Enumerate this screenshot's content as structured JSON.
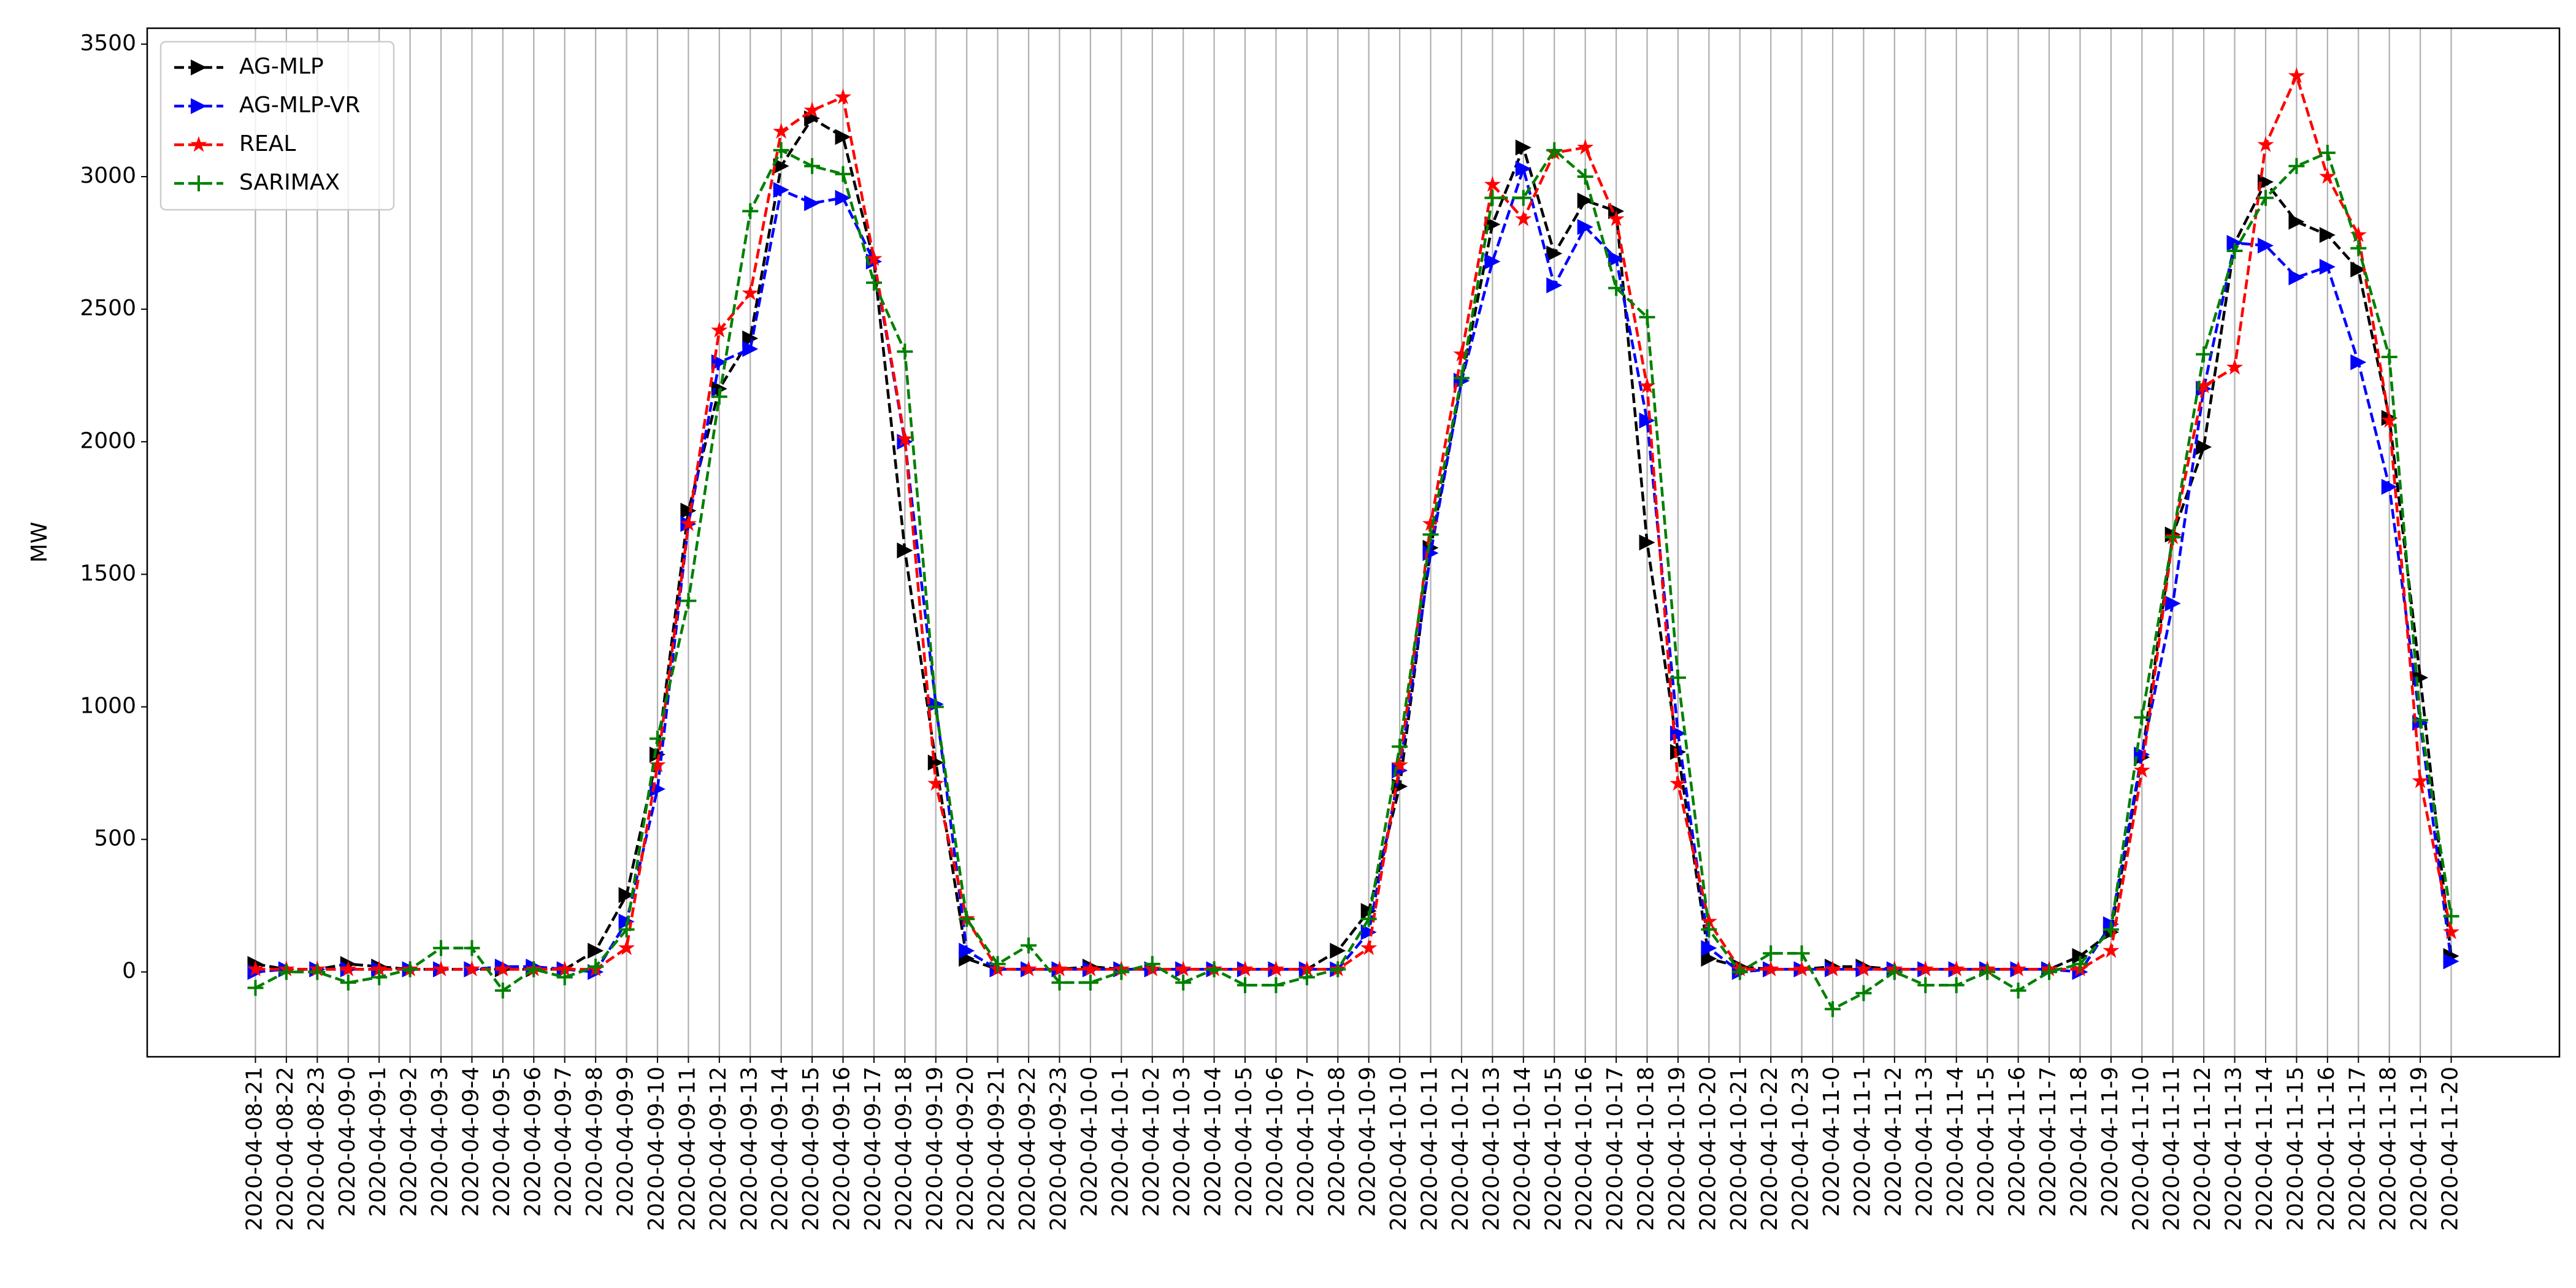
{
  "chart_data": {
    "type": "line",
    "y_label": "MW",
    "categories": [
      "2020-04-08-21",
      "2020-04-08-22",
      "2020-04-08-23",
      "2020-04-09-0",
      "2020-04-09-1",
      "2020-04-09-2",
      "2020-04-09-3",
      "2020-04-09-4",
      "2020-04-09-5",
      "2020-04-09-6",
      "2020-04-09-7",
      "2020-04-09-8",
      "2020-04-09-9",
      "2020-04-09-10",
      "2020-04-09-11",
      "2020-04-09-12",
      "2020-04-09-13",
      "2020-04-09-14",
      "2020-04-09-15",
      "2020-04-09-16",
      "2020-04-09-17",
      "2020-04-09-18",
      "2020-04-09-19",
      "2020-04-09-20",
      "2020-04-09-21",
      "2020-04-09-22",
      "2020-04-09-23",
      "2020-04-10-0",
      "2020-04-10-1",
      "2020-04-10-2",
      "2020-04-10-3",
      "2020-04-10-4",
      "2020-04-10-5",
      "2020-04-10-6",
      "2020-04-10-7",
      "2020-04-10-8",
      "2020-04-10-9",
      "2020-04-10-10",
      "2020-04-10-11",
      "2020-04-10-12",
      "2020-04-10-13",
      "2020-04-10-14",
      "2020-04-10-15",
      "2020-04-10-16",
      "2020-04-10-17",
      "2020-04-10-18",
      "2020-04-10-19",
      "2020-04-10-20",
      "2020-04-10-21",
      "2020-04-10-22",
      "2020-04-10-23",
      "2020-04-11-0",
      "2020-04-11-1",
      "2020-04-11-2",
      "2020-04-11-3",
      "2020-04-11-4",
      "2020-04-11-5",
      "2020-04-11-6",
      "2020-04-11-7",
      "2020-04-11-8",
      "2020-04-11-9",
      "2020-04-11-10",
      "2020-04-11-11",
      "2020-04-11-12",
      "2020-04-11-13",
      "2020-04-11-14",
      "2020-04-11-15",
      "2020-04-11-16",
      "2020-04-11-17",
      "2020-04-11-18",
      "2020-04-11-19",
      "2020-04-11-20"
    ],
    "series": [
      {
        "name": "AG-MLP",
        "color": "#000000",
        "marker": ">",
        "values": [
          30,
          10,
          10,
          30,
          20,
          10,
          10,
          10,
          10,
          10,
          10,
          80,
          290,
          820,
          1740,
          2200,
          2390,
          3040,
          3220,
          3150,
          2680,
          1590,
          790,
          50,
          10,
          10,
          10,
          20,
          10,
          10,
          10,
          10,
          10,
          10,
          10,
          80,
          230,
          700,
          1600,
          2230,
          2820,
          3110,
          2710,
          2910,
          2870,
          1620,
          830,
          50,
          20,
          10,
          10,
          20,
          20,
          10,
          10,
          10,
          10,
          10,
          10,
          60,
          150,
          810,
          1650,
          1980,
          2750,
          2980,
          2830,
          2780,
          2650,
          2090,
          1110,
          60
        ]
      },
      {
        "name": "AG-MLP-VR",
        "color": "#0000ff",
        "marker": ">",
        "values": [
          0,
          10,
          10,
          10,
          10,
          10,
          10,
          10,
          20,
          20,
          10,
          0,
          190,
          690,
          1690,
          2300,
          2350,
          2950,
          2900,
          2920,
          2680,
          2000,
          1010,
          80,
          10,
          10,
          10,
          10,
          10,
          10,
          10,
          10,
          10,
          10,
          10,
          10,
          150,
          760,
          1580,
          2230,
          2680,
          3030,
          2590,
          2810,
          2690,
          2080,
          900,
          90,
          0,
          10,
          10,
          10,
          10,
          10,
          10,
          10,
          10,
          10,
          10,
          0,
          180,
          820,
          1390,
          2200,
          2750,
          2740,
          2620,
          2660,
          2300,
          1830,
          940,
          40
        ]
      },
      {
        "name": "REAL",
        "color": "#ff0000",
        "marker": "*",
        "values": [
          10,
          10,
          10,
          10,
          10,
          10,
          10,
          10,
          10,
          10,
          10,
          10,
          90,
          780,
          1690,
          2420,
          2560,
          3170,
          3250,
          3300,
          2690,
          2010,
          710,
          200,
          10,
          10,
          10,
          10,
          10,
          10,
          10,
          10,
          10,
          10,
          10,
          10,
          90,
          780,
          1690,
          2330,
          2970,
          2840,
          3090,
          3110,
          2840,
          2210,
          710,
          190,
          10,
          10,
          10,
          10,
          10,
          10,
          10,
          10,
          10,
          10,
          10,
          10,
          80,
          760,
          1640,
          2210,
          2280,
          3120,
          3380,
          3000,
          2780,
          2080,
          720,
          150
        ]
      },
      {
        "name": "SARIMAX",
        "color": "#008000",
        "marker": "+",
        "values": [
          -60,
          0,
          0,
          -40,
          -20,
          10,
          90,
          90,
          -70,
          10,
          -20,
          20,
          160,
          880,
          1400,
          2170,
          2870,
          3100,
          3040,
          3010,
          2600,
          2340,
          1000,
          200,
          30,
          100,
          -40,
          -40,
          0,
          30,
          -40,
          10,
          -50,
          -50,
          -20,
          10,
          200,
          850,
          1650,
          2240,
          2920,
          2920,
          3100,
          3000,
          2580,
          2470,
          1110,
          160,
          0,
          70,
          70,
          -140,
          -80,
          0,
          -50,
          -50,
          0,
          -70,
          0,
          30,
          160,
          960,
          1640,
          2330,
          2720,
          2920,
          3040,
          3090,
          2730,
          2320,
          950,
          210
        ]
      }
    ],
    "ylim": [
      -320,
      3560
    ],
    "yticks": [
      0,
      500,
      1000,
      1500,
      2000,
      2500,
      3000,
      3500
    ],
    "grid": "x",
    "line_style": "dashed",
    "legend": "upper left"
  }
}
